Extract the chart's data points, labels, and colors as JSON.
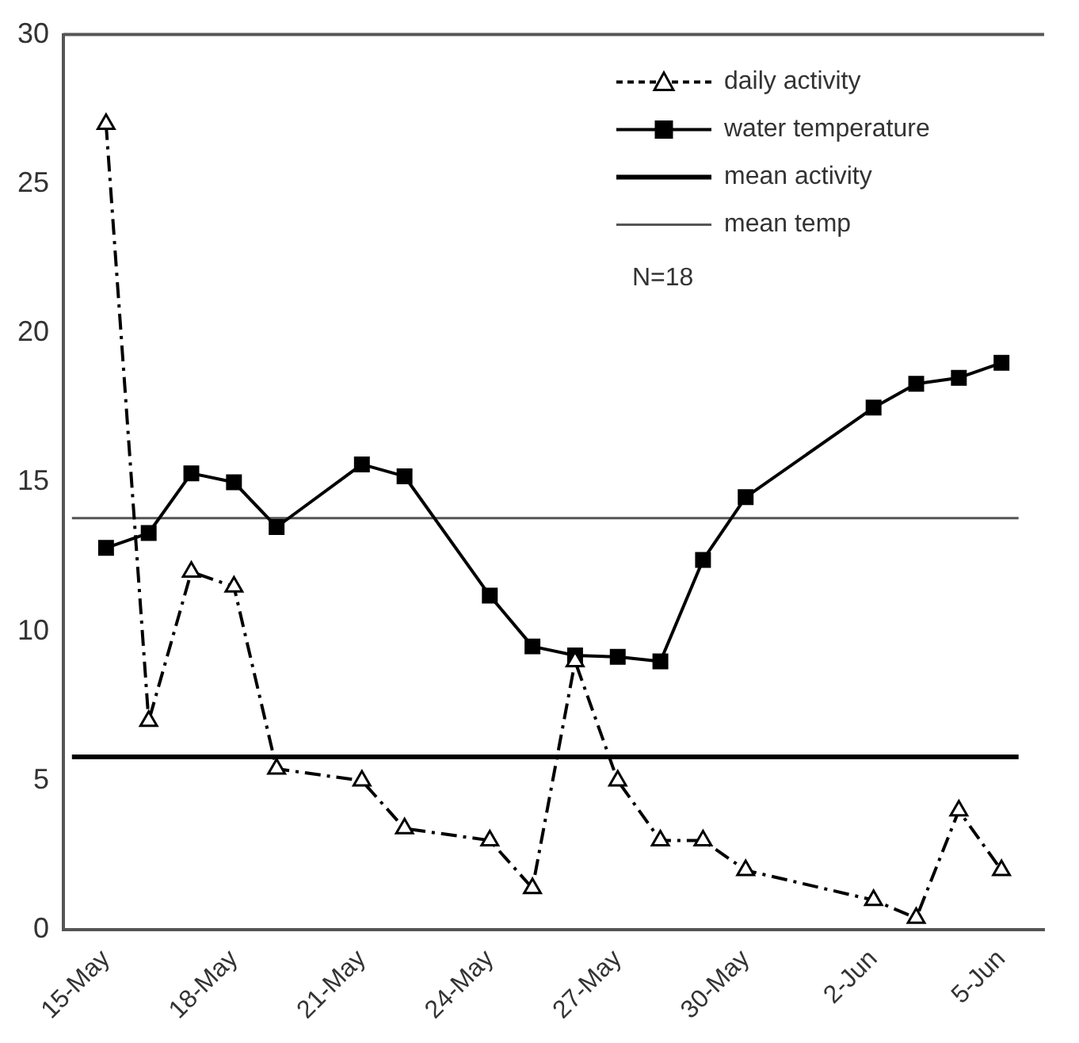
{
  "chart_data": {
    "type": "line",
    "x": [
      "--05-15",
      "--05-16",
      "--05-17",
      "--05-18",
      "--05-19",
      "--05-21",
      "--05-22",
      "--05-24",
      "--05-25",
      "--05-26",
      "--05-27",
      "--05-28",
      "--05-29",
      "--05-30",
      "--06-02",
      "--06-03",
      "--06-04",
      "--06-05"
    ],
    "series": [
      {
        "name": "daily activity",
        "color": "#000000",
        "marker": "triangle",
        "line_style": "dashed",
        "values": [
          27,
          7,
          12,
          11.5,
          5.4,
          5,
          3.4,
          3,
          1.4,
          9,
          5,
          3,
          3,
          2,
          1,
          0.4,
          4,
          2
        ]
      },
      {
        "name": "water temperature",
        "color": "#000000",
        "marker": "square",
        "line_style": "solid",
        "values": [
          12.8,
          13.3,
          15.3,
          15,
          13.5,
          15.6,
          15.2,
          11.2,
          9.5,
          9.2,
          9.15,
          9,
          12.4,
          14.5,
          17.5,
          18.3,
          18.5,
          19
        ]
      }
    ],
    "ref_lines": [
      {
        "axis": "y",
        "value": 5.8,
        "label": "mean activity",
        "color": "#000000"
      },
      {
        "axis": "y",
        "value": 13.8,
        "label": "mean temp",
        "color": "#555555"
      }
    ],
    "annotations": [
      "N=18"
    ],
    "xlim": [
      "--05-14",
      "--06-06"
    ],
    "xticks": [
      {
        "value": "--05-15",
        "label": "15-May"
      },
      {
        "value": "--05-18",
        "label": "18-May"
      },
      {
        "value": "--05-21",
        "label": "21-May"
      },
      {
        "value": "--05-24",
        "label": "24-May"
      },
      {
        "value": "--05-27",
        "label": "27-May"
      },
      {
        "value": "--05-30",
        "label": "30-May"
      },
      {
        "value": "--06-02",
        "label": "2-Jun"
      },
      {
        "value": "--06-05",
        "label": "5-Jun"
      }
    ],
    "ylim": [
      0,
      30
    ],
    "yticks": [
      0,
      5,
      10,
      15,
      20,
      25,
      30
    ],
    "grid": false,
    "legend": "top right"
  }
}
